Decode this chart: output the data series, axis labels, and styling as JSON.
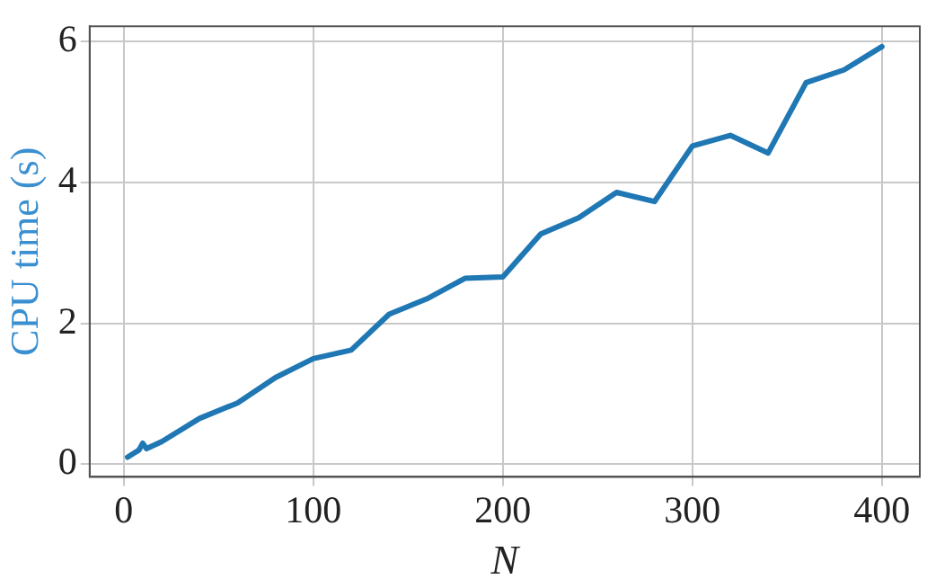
{
  "chart_data": {
    "type": "line",
    "xlabel": "N",
    "ylabel": "CPU time (s)",
    "x": [
      2,
      5,
      8,
      10,
      12,
      20,
      40,
      60,
      80,
      100,
      120,
      140,
      160,
      180,
      200,
      220,
      240,
      260,
      280,
      300,
      320,
      340,
      360,
      380,
      400
    ],
    "series": [
      {
        "color": "#1f77b4",
        "values": [
          0.1,
          0.15,
          0.2,
          0.3,
          0.22,
          0.32,
          0.65,
          0.87,
          1.23,
          1.5,
          1.62,
          2.13,
          2.35,
          2.64,
          2.66,
          3.27,
          3.5,
          3.86,
          3.73,
          4.52,
          4.67,
          4.42,
          5.42,
          5.6,
          5.93
        ]
      }
    ],
    "xlim": [
      -18,
      420
    ],
    "xticks": [
      0,
      100,
      200,
      300,
      400
    ],
    "ylim": [
      -0.18,
      6.22
    ],
    "yticks": [
      0,
      2,
      4,
      6
    ],
    "grid": true,
    "legend": false,
    "marker": "none",
    "line_style": "solid"
  }
}
